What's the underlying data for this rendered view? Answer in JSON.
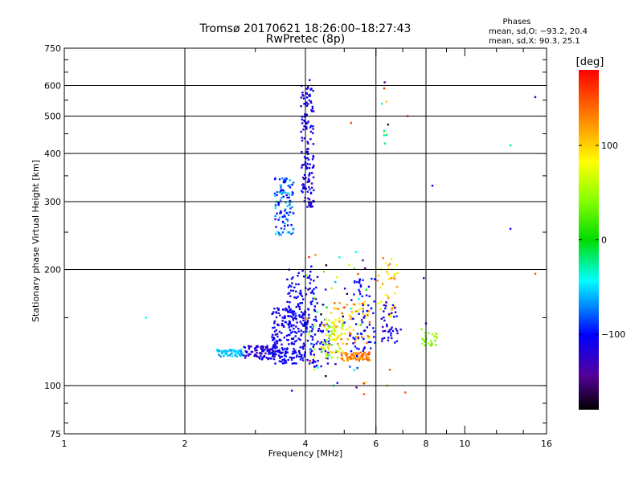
{
  "chart_data": {
    "type": "scatter",
    "title": "Tromsø 20170621 18:26:00–18:27:43",
    "subtitle": "RwPretec (8p)",
    "stats": {
      "heading": "Phases",
      "line1": "mean, sd,O: −93.2, 20.4",
      "line2": "mean, sd,X:  90.3, 25.1"
    },
    "xlabel": "Frequency [MHz]",
    "ylabel": "Stationary phase Virtual Height [km]",
    "x_scale": "log",
    "y_scale": "log",
    "xlim": [
      1,
      16
    ],
    "ylim": [
      75,
      750
    ],
    "x_ticks": [
      1,
      2,
      4,
      6,
      8,
      10,
      16
    ],
    "x_tick_labels": [
      "1",
      "2",
      "4",
      "6",
      "8",
      "10",
      "16"
    ],
    "y_ticks": [
      75,
      100,
      200,
      300,
      400,
      500,
      600,
      750
    ],
    "y_tick_labels": [
      "75",
      "100",
      "200",
      "300",
      "400",
      "500",
      "600",
      "750"
    ],
    "x_grid": [
      2,
      4,
      6,
      8
    ],
    "y_grid": [
      100,
      200,
      300,
      400,
      500,
      600
    ],
    "grid": true,
    "colorbar": {
      "label": "[deg]",
      "range": [
        -180,
        180
      ],
      "ticks": [
        100,
        0,
        -100
      ],
      "tick_labels": [
        "100",
        "0",
        "−100"
      ]
    },
    "clusters": [
      {
        "f": [
          2.4,
          2.8
        ],
        "h": [
          119,
          124
        ],
        "phase": [
          -75,
          -45
        ],
        "n": 60
      },
      {
        "f": [
          2.8,
          3.4
        ],
        "h": [
          117,
          127
        ],
        "phase": [
          -140,
          -95
        ],
        "n": 90
      },
      {
        "f": [
          3.3,
          4.0
        ],
        "h": [
          114,
          160
        ],
        "phase": [
          -120,
          -95
        ],
        "n": 220
      },
      {
        "f": [
          3.6,
          4.3
        ],
        "h": [
          140,
          200
        ],
        "phase": [
          -115,
          -95
        ],
        "n": 90
      },
      {
        "f": [
          4.0,
          4.6
        ],
        "h": [
          112,
          150
        ],
        "phase": [
          -120,
          -95
        ],
        "n": 70
      },
      {
        "f": [
          3.35,
          3.75
        ],
        "h": [
          245,
          345
        ],
        "phase": [
          -115,
          -45
        ],
        "n": 110
      },
      {
        "f": [
          3.9,
          4.2
        ],
        "h": [
          290,
          600
        ],
        "phase": [
          -125,
          -95
        ],
        "n": 140
      },
      {
        "f": [
          4.4,
          5.0
        ],
        "h": [
          118,
          148
        ],
        "phase": [
          20,
          110
        ],
        "n": 60
      },
      {
        "f": [
          4.9,
          5.8
        ],
        "h": [
          116,
          122
        ],
        "phase": [
          110,
          155
        ],
        "n": 70
      },
      {
        "f": [
          4.7,
          5.8
        ],
        "h": [
          128,
          165
        ],
        "phase": [
          60,
          150
        ],
        "n": 70
      },
      {
        "f": [
          5.2,
          6.0
        ],
        "h": [
          122,
          190
        ],
        "phase": [
          -110,
          -90
        ],
        "n": 60
      },
      {
        "f": [
          6.0,
          6.8
        ],
        "h": [
          150,
          215
        ],
        "phase": [
          60,
          140
        ],
        "n": 40
      },
      {
        "f": [
          6.2,
          7.0
        ],
        "h": [
          128,
          165
        ],
        "phase": [
          -130,
          -95
        ],
        "n": 40
      },
      {
        "f": [
          7.8,
          8.6
        ],
        "h": [
          127,
          138
        ],
        "phase": [
          25,
          60
        ],
        "n": 25
      },
      {
        "f": [
          4.0,
          5.7
        ],
        "h": [
          98,
          230
        ],
        "phase": [
          -180,
          180
        ],
        "n": 70
      },
      {
        "f": [
          6.2,
          6.5
        ],
        "h": [
          400,
          640
        ],
        "phase": [
          -180,
          180
        ],
        "n": 10
      }
    ],
    "points": [
      [
        1.6,
        150,
        -40
      ],
      [
        13,
        420,
        -20
      ],
      [
        13,
        255,
        -110
      ],
      [
        15,
        560,
        -110
      ],
      [
        15,
        195,
        150
      ],
      [
        8.3,
        330,
        -110
      ],
      [
        8.0,
        145,
        -100
      ],
      [
        7.9,
        190,
        -120
      ],
      [
        7.8,
        140,
        40
      ],
      [
        7.2,
        500,
        150
      ],
      [
        4.1,
        620,
        -110
      ],
      [
        6.5,
        110,
        150
      ],
      [
        6.4,
        100,
        120
      ],
      [
        5.6,
        95,
        150
      ],
      [
        4.7,
        100,
        -30
      ],
      [
        3.7,
        97,
        -110
      ],
      [
        7.1,
        96,
        150
      ],
      [
        5.2,
        480,
        150
      ]
    ]
  }
}
